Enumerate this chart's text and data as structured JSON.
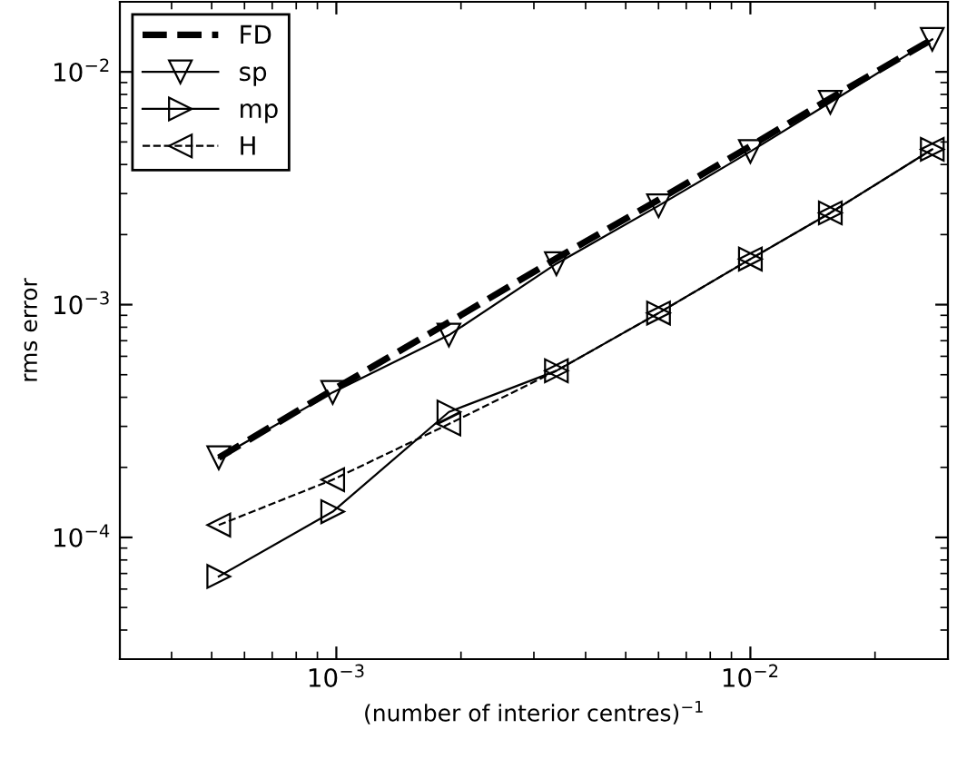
{
  "chart_data": {
    "type": "line",
    "xlabel": "(number of interior centres)$^{−1}$",
    "ylabel": "rms error",
    "log": "xy",
    "xlim": [
      0.0003,
      0.03
    ],
    "ylim": [
      3e-05,
      0.02
    ],
    "xticks": [
      {
        "value": 0.001,
        "label": "10$^{−3}$"
      },
      {
        "value": 0.01,
        "label": "10$^{−2}$"
      }
    ],
    "yticks": [
      {
        "value": 0.0001,
        "label": "10$^{−4}$"
      },
      {
        "value": 0.001,
        "label": "10$^{−3}$"
      },
      {
        "value": 0.01,
        "label": "10$^{−2}$"
      }
    ],
    "grid": false,
    "legend": "top left",
    "x": [
      0.00052,
      0.00098,
      0.00187,
      0.0034,
      0.006,
      0.01,
      0.0156,
      0.0275
    ],
    "series": [
      {
        "name": "FD",
        "color": "#000000",
        "line_style": "dashed",
        "marker": "none",
        "values": [
          0.00022,
          0.00043,
          0.00084,
          0.00158,
          0.00282,
          0.0048,
          0.0077,
          0.0138
        ]
      },
      {
        "name": "sp",
        "color": "#000000",
        "line_style": "solid",
        "marker": "triangle_down",
        "values": [
          0.00022,
          0.00042,
          0.00074,
          0.0015,
          0.00266,
          0.00455,
          0.0074,
          0.0138
        ]
      },
      {
        "name": "mp",
        "color": "#000000",
        "line_style": "solid",
        "marker": "triangle_right",
        "values": [
          6.8e-05,
          0.000129,
          0.000346,
          0.00052,
          0.00092,
          0.00157,
          0.00248,
          0.00465
        ]
      },
      {
        "name": "H",
        "color": "#000000",
        "line_style": "dashed",
        "marker": "triangle_left",
        "values": [
          0.000113,
          0.000177,
          0.000307,
          0.00052,
          0.00092,
          0.00157,
          0.00248,
          0.00465
        ]
      }
    ]
  }
}
